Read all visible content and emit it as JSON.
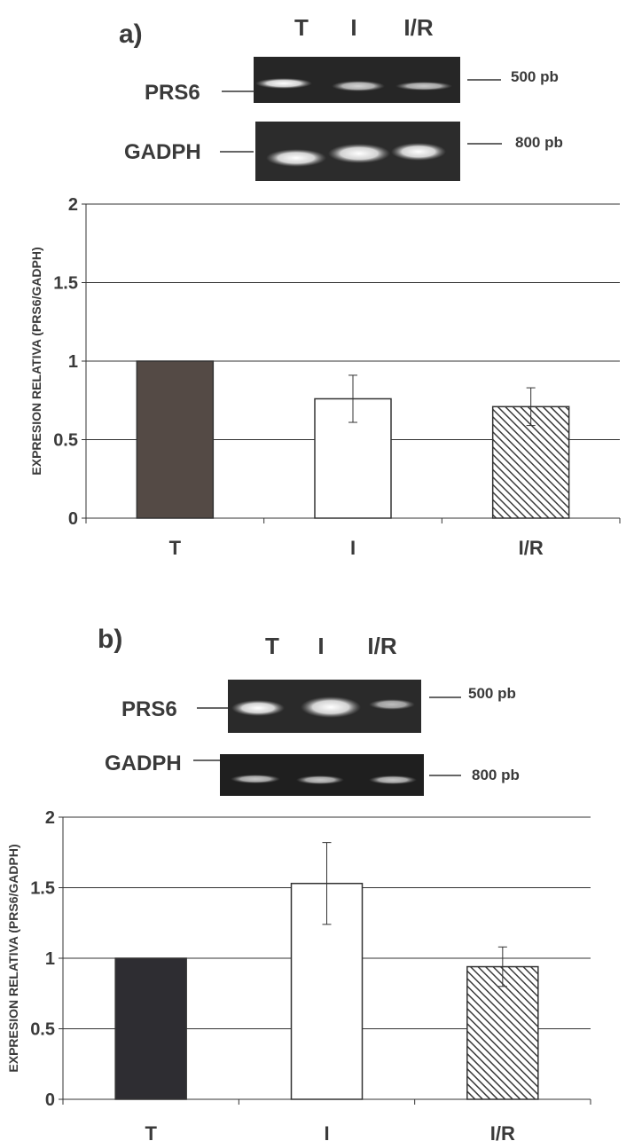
{
  "panels": [
    {
      "panel_label": "a)",
      "gel": {
        "lane_labels": [
          "T",
          "I",
          "I/R"
        ],
        "rows": [
          {
            "label": "PRS6",
            "size_marker": "500 pb"
          },
          {
            "label": "GADPH",
            "size_marker": "800 pb"
          }
        ]
      },
      "colors": {
        "T": "#544a45",
        "I": "#ffffff",
        "I/R": "hatched"
      },
      "chart_data": {
        "type": "bar",
        "categories": [
          "T",
          "I",
          "I/R"
        ],
        "values": [
          1.0,
          0.76,
          0.71
        ],
        "errors": [
          0.0,
          0.15,
          0.12
        ],
        "ylabel": "EXPRESION RELATIVA (PRS6/GADPH)",
        "ylim": [
          0,
          2
        ],
        "yticks": [
          "0",
          "0.5",
          "1",
          "1.5",
          "2"
        ],
        "grid": true
      }
    },
    {
      "panel_label": "b)",
      "gel": {
        "lane_labels": [
          "T",
          "I",
          "I/R"
        ],
        "rows": [
          {
            "label": "PRS6",
            "size_marker": "500 pb"
          },
          {
            "label": "GADPH",
            "size_marker": "800 pb"
          }
        ]
      },
      "colors": {
        "T": "#2e2d32",
        "I": "#ffffff",
        "I/R": "hatched"
      },
      "chart_data": {
        "type": "bar",
        "categories": [
          "T",
          "I",
          "I/R"
        ],
        "values": [
          1.0,
          1.53,
          0.94
        ],
        "errors": [
          0.0,
          0.29,
          0.14
        ],
        "ylabel": "EXPRESION RELATIVA (PRS6/GADPH)",
        "ylim": [
          0,
          2
        ],
        "yticks": [
          "0",
          "0.5",
          "1",
          "1.5",
          "2"
        ],
        "grid": true
      }
    }
  ]
}
